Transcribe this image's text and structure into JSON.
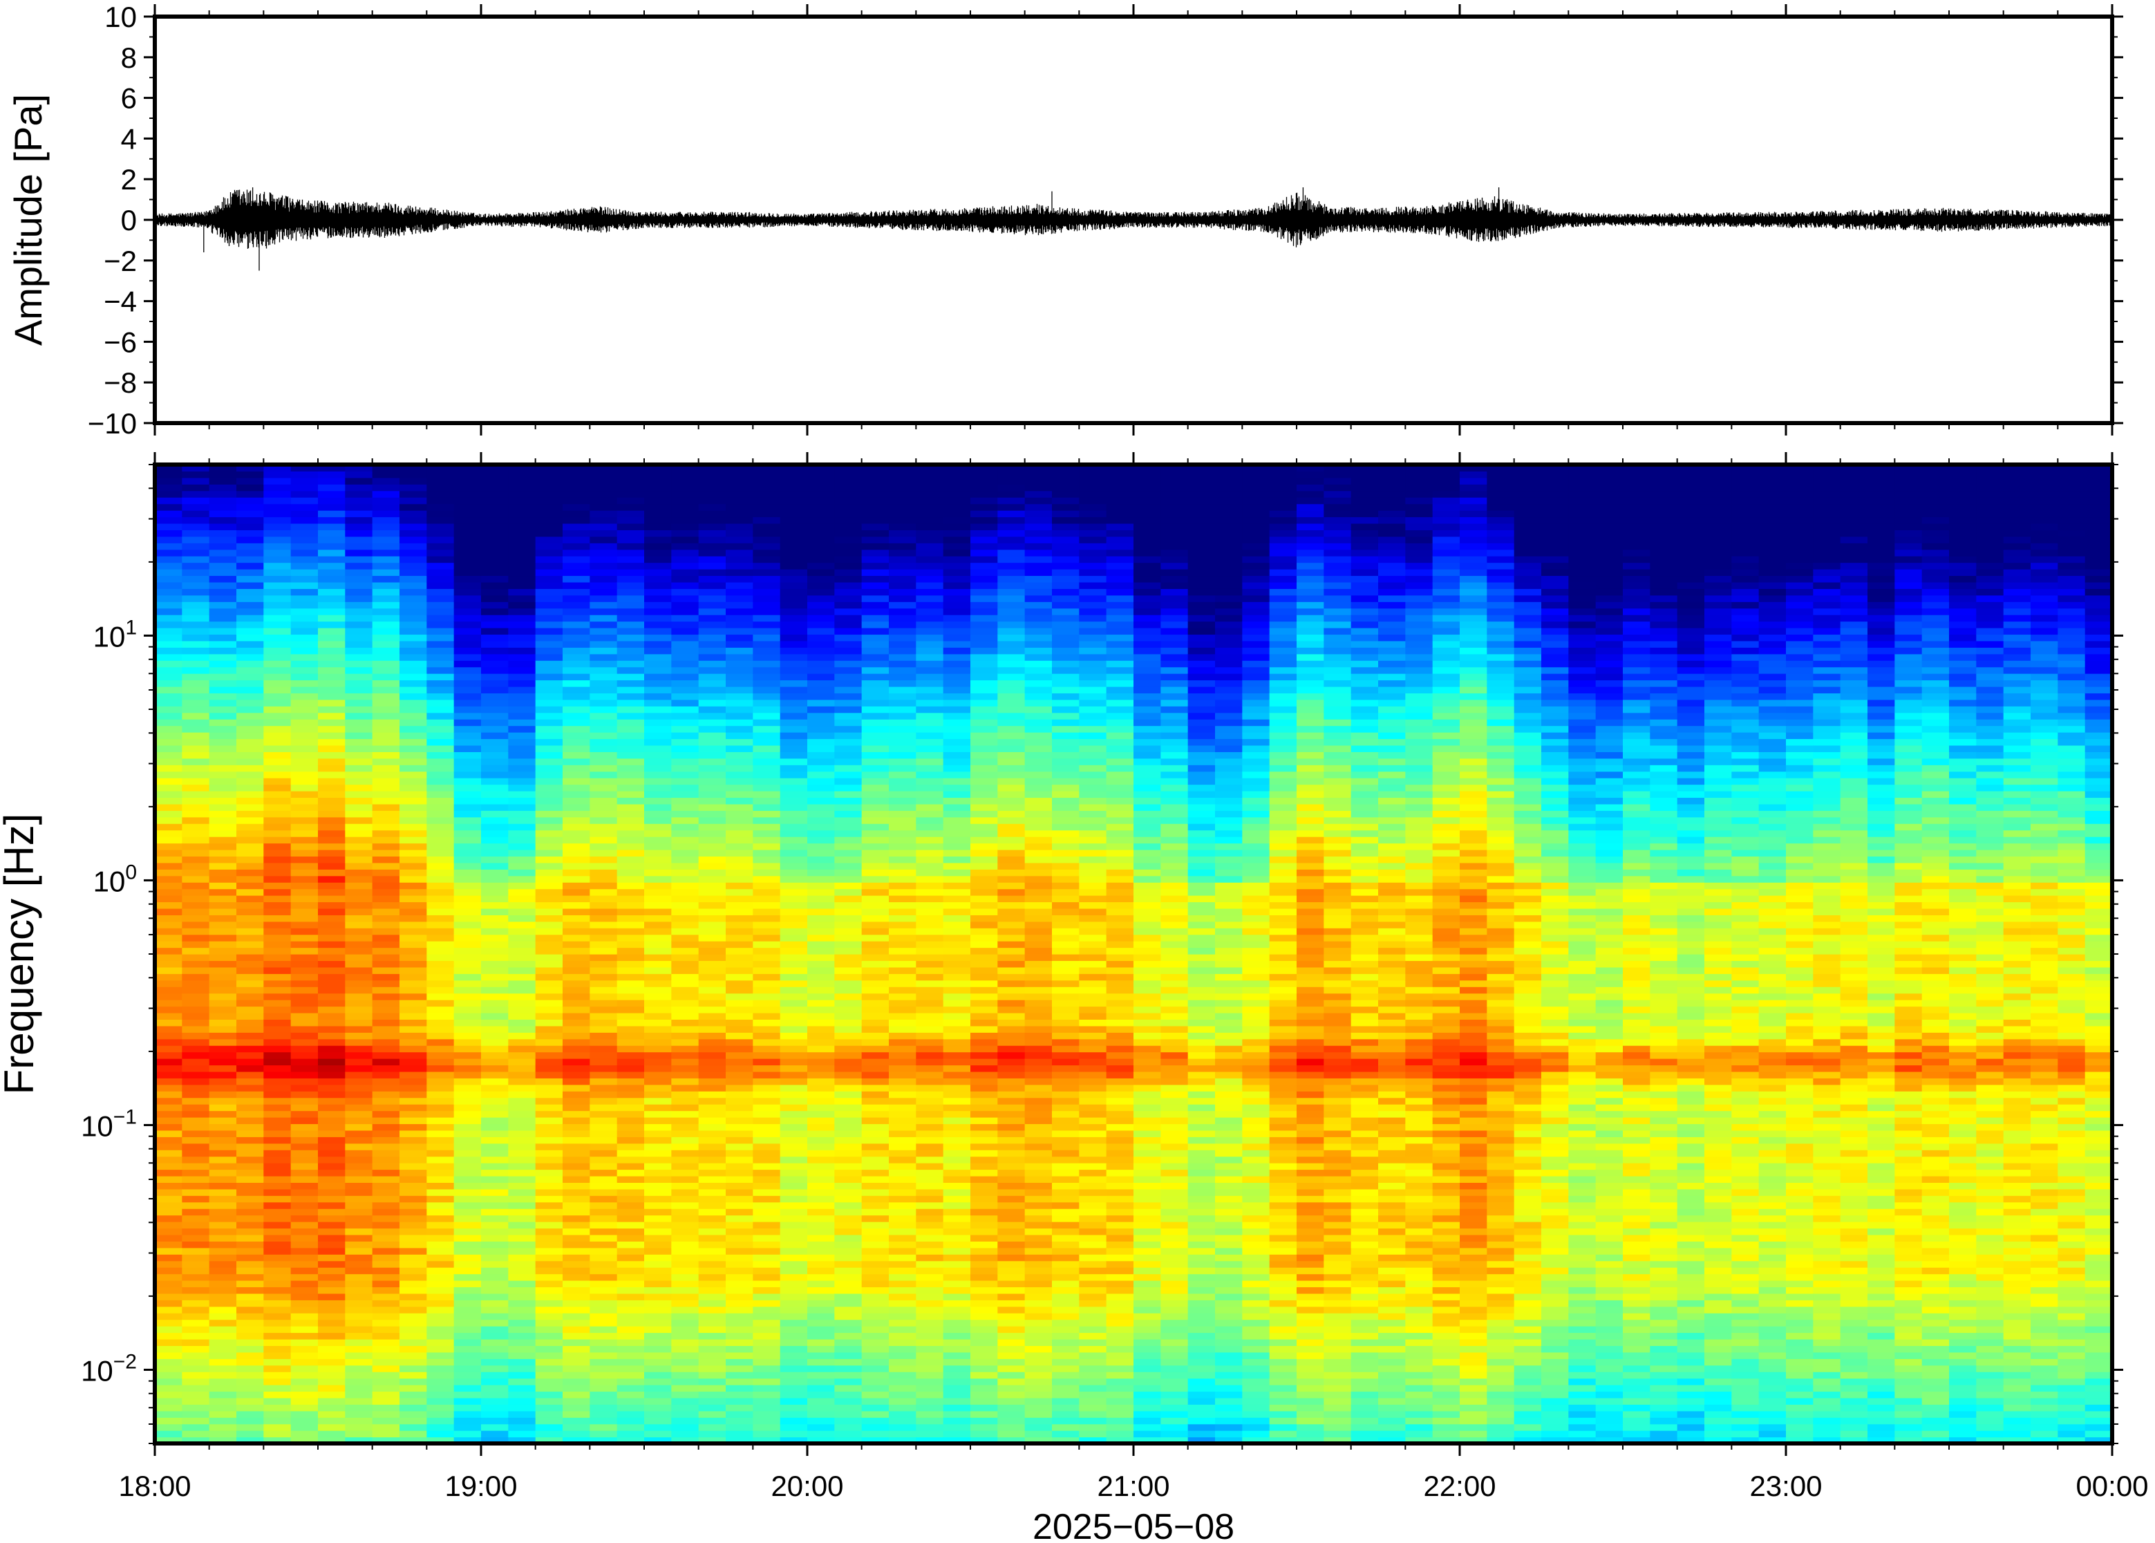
{
  "chart_data": [
    {
      "type": "line",
      "ylabel": "Amplitude [Pa]",
      "xlabel": "",
      "ylim": [
        -10,
        10
      ],
      "y_ticks": [
        "10",
        "8",
        "6",
        "4",
        "2",
        "0",
        "−2",
        "−4",
        "−6",
        "−8",
        "−10"
      ],
      "y_tick_values": [
        10,
        8,
        6,
        4,
        2,
        0,
        -2,
        -4,
        -6,
        -8,
        -10
      ],
      "x_range": [
        "18:00",
        "00:00"
      ],
      "line_color": "#000000",
      "envelope": {
        "time_hours": [
          0.0,
          0.15,
          0.25,
          0.35,
          0.45,
          0.55,
          0.7,
          0.85,
          1.0,
          1.2,
          1.35,
          1.5,
          1.8,
          2.0,
          2.3,
          2.5,
          2.7,
          2.8,
          3.0,
          3.2,
          3.4,
          3.5,
          3.6,
          3.7,
          3.9,
          4.1,
          4.3,
          4.5,
          5.0,
          5.5,
          6.0
        ],
        "amplitude_pa": [
          0.3,
          0.4,
          1.6,
          1.4,
          1.0,
          0.9,
          0.9,
          0.6,
          0.3,
          0.4,
          0.7,
          0.4,
          0.4,
          0.3,
          0.5,
          0.6,
          0.8,
          0.6,
          0.4,
          0.4,
          0.6,
          1.4,
          0.7,
          0.6,
          0.7,
          1.2,
          0.4,
          0.3,
          0.4,
          0.6,
          0.3
        ]
      },
      "extremes": [
        {
          "time_hours": 0.15,
          "value": -1.6
        },
        {
          "time_hours": 0.32,
          "value": -2.5
        },
        {
          "time_hours": 0.3,
          "value": 1.6
        },
        {
          "time_hours": 2.75,
          "value": 1.4
        },
        {
          "time_hours": 3.52,
          "value": 1.6
        },
        {
          "time_hours": 4.12,
          "value": 1.6
        }
      ]
    },
    {
      "type": "heatmap",
      "ylabel": "Frequency [Hz]",
      "xlabel": "2025−05−08",
      "y_scale": "log",
      "ylim": [
        0.005,
        50
      ],
      "y_ticks": [
        {
          "value": 10,
          "base": "10",
          "exp": "1"
        },
        {
          "value": 1,
          "base": "10",
          "exp": "0"
        },
        {
          "value": 0.1,
          "base": "10",
          "exp": "−1"
        },
        {
          "value": 0.01,
          "base": "10",
          "exp": "−2"
        }
      ],
      "x_ticks": [
        "18:00",
        "19:00",
        "20:00",
        "21:00",
        "22:00",
        "23:00",
        "00:00"
      ],
      "x_tick_hours": [
        0,
        1,
        2,
        3,
        4,
        5,
        6
      ],
      "colormap": "jet",
      "colormap_stops": [
        "#00007f",
        "#0000ff",
        "#007fff",
        "#00ffff",
        "#7fff7f",
        "#ffff00",
        "#ff7f00",
        "#ff0000",
        "#7f0000"
      ],
      "column_level": {
        "time_hours": [
          0.0,
          0.25,
          0.5,
          0.75,
          1.0,
          1.1,
          1.3,
          1.5,
          1.75,
          2.0,
          2.25,
          2.5,
          2.75,
          3.0,
          3.2,
          3.35,
          3.5,
          3.65,
          3.8,
          4.0,
          4.2,
          4.4,
          4.7,
          5.0,
          5.3,
          5.6,
          6.0
        ],
        "relative_level": [
          0.85,
          0.95,
          0.95,
          0.85,
          0.5,
          0.45,
          0.75,
          0.7,
          0.65,
          0.55,
          0.6,
          0.7,
          0.8,
          0.65,
          0.45,
          0.4,
          0.85,
          0.75,
          0.7,
          0.85,
          0.7,
          0.45,
          0.5,
          0.55,
          0.55,
          0.6,
          0.5
        ]
      },
      "microbarom_peak_hz": 0.18
    }
  ]
}
